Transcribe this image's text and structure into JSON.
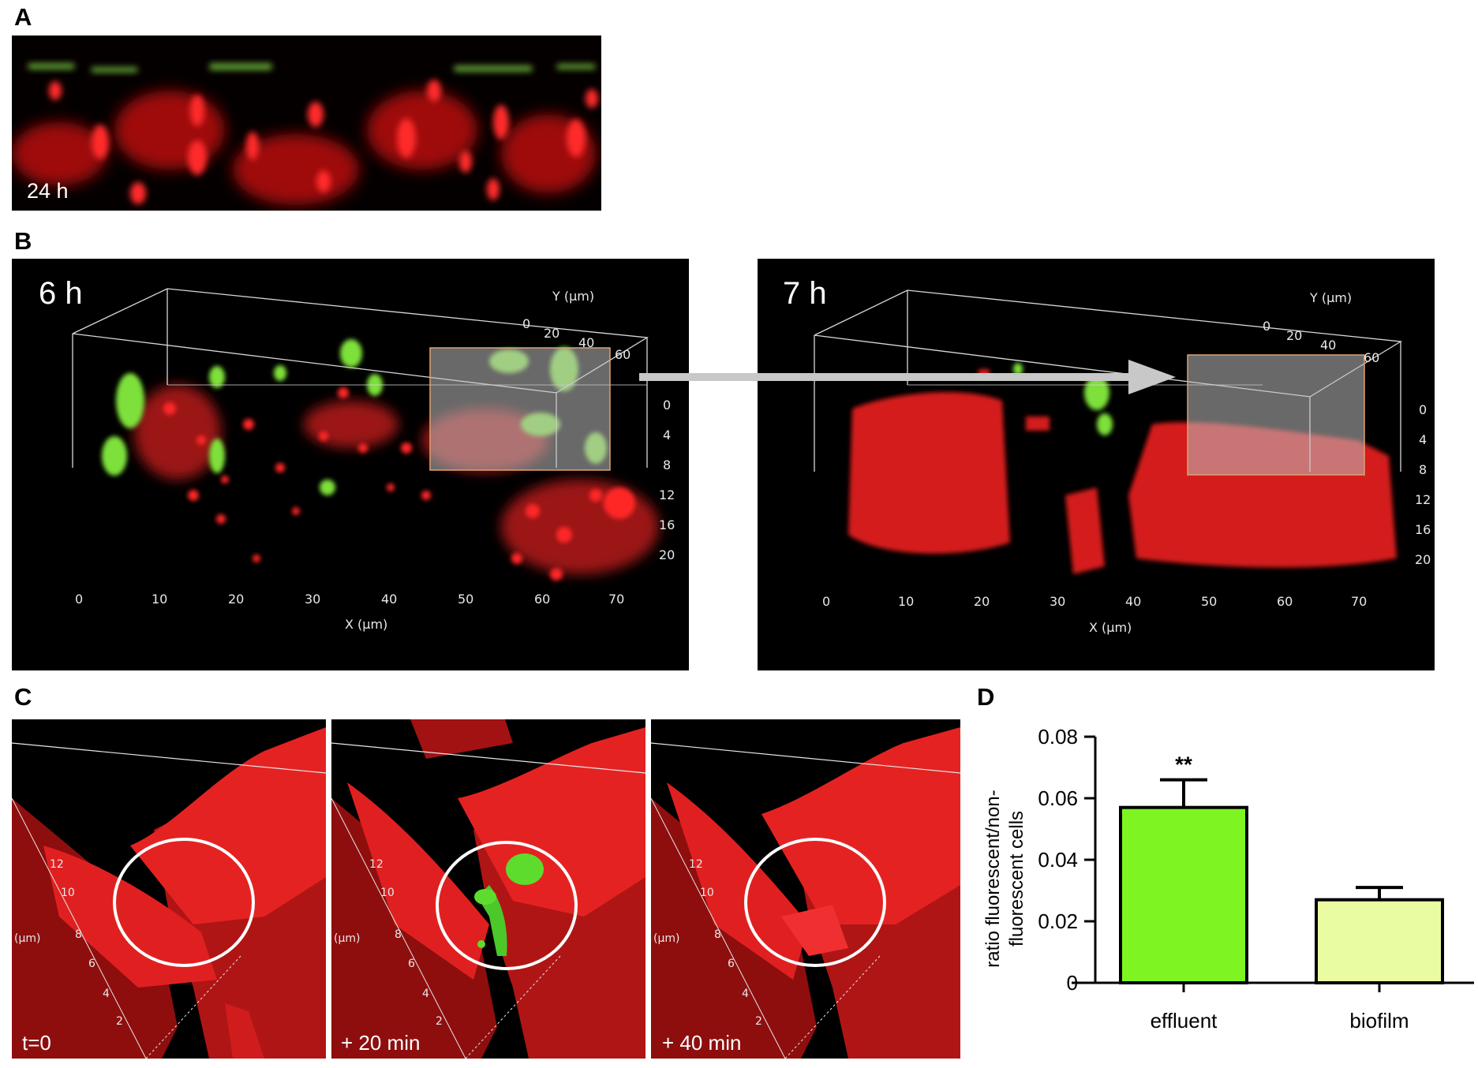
{
  "panels": {
    "A": {
      "label": "A",
      "time": "24 h"
    },
    "B": {
      "label": "B",
      "left": {
        "time": "6 h"
      },
      "right": {
        "time": "7 h"
      },
      "x_axis_label": "X (µm)",
      "y_axis_label": "Y (µm)",
      "x_ticks": [
        "0",
        "10",
        "20",
        "30",
        "40",
        "50",
        "60",
        "70"
      ],
      "y_ticks": [
        "0",
        "20",
        "40",
        "60"
      ],
      "z_ticks": [
        "0",
        "4",
        "8",
        "12",
        "16",
        "20"
      ]
    },
    "C": {
      "label": "C",
      "frames": [
        "t=0",
        "+ 20 min",
        "+ 40 min"
      ],
      "axis_unit": "(µm)",
      "axis_ticks": [
        "12",
        "10",
        "8",
        "6",
        "4",
        "2"
      ]
    },
    "D": {
      "label": "D"
    }
  },
  "chart_data": {
    "type": "bar",
    "categories": [
      "effluent",
      "biofilm"
    ],
    "values": [
      0.057,
      0.027
    ],
    "errors": [
      0.009,
      0.004
    ],
    "significance": [
      "**",
      ""
    ],
    "bar_colors": [
      "#7ef520",
      "#eafca2"
    ],
    "ylabel": "ratio fluorescent/non-fluorescent cells",
    "ylabel_lines": [
      "ratio fluorescent/non-",
      "fluorescent cells"
    ],
    "ylim": [
      0,
      0.08
    ],
    "yticks": [
      "0",
      "0.02",
      "0.04",
      "0.06",
      "0.08"
    ]
  }
}
